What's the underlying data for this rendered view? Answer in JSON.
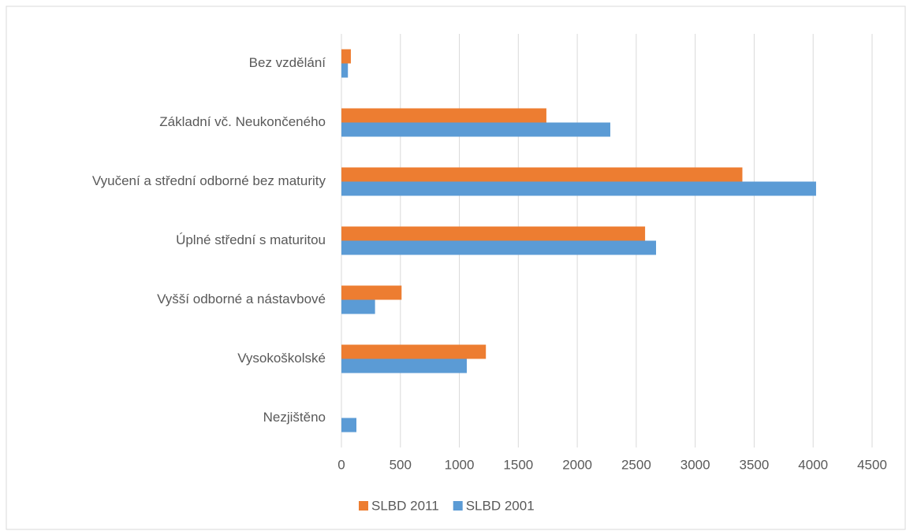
{
  "chart_data": {
    "type": "barh",
    "categories": [
      "Bez vzdělání",
      "Základní vč. Neukončeného",
      "Vyučení a střední odborné bez maturity",
      "Úplné střední s maturitou",
      "Vyšší odborné a nástavbové",
      "Vysokoškolské",
      "Nezjištěno"
    ],
    "series": [
      {
        "name": "SLBD 2011",
        "color": "#ed7d31",
        "values": [
          80,
          1738,
          3400,
          2575,
          510,
          1225,
          0
        ]
      },
      {
        "name": "SLBD 2001",
        "color": "#5b9bd5",
        "values": [
          55,
          2280,
          4025,
          2668,
          285,
          1063,
          127
        ]
      }
    ],
    "xlim": [
      0,
      4500
    ],
    "xticks": [
      0,
      500,
      1000,
      1500,
      2000,
      2500,
      3000,
      3500,
      4000,
      4500
    ],
    "grid": true,
    "legend": "bottom"
  }
}
